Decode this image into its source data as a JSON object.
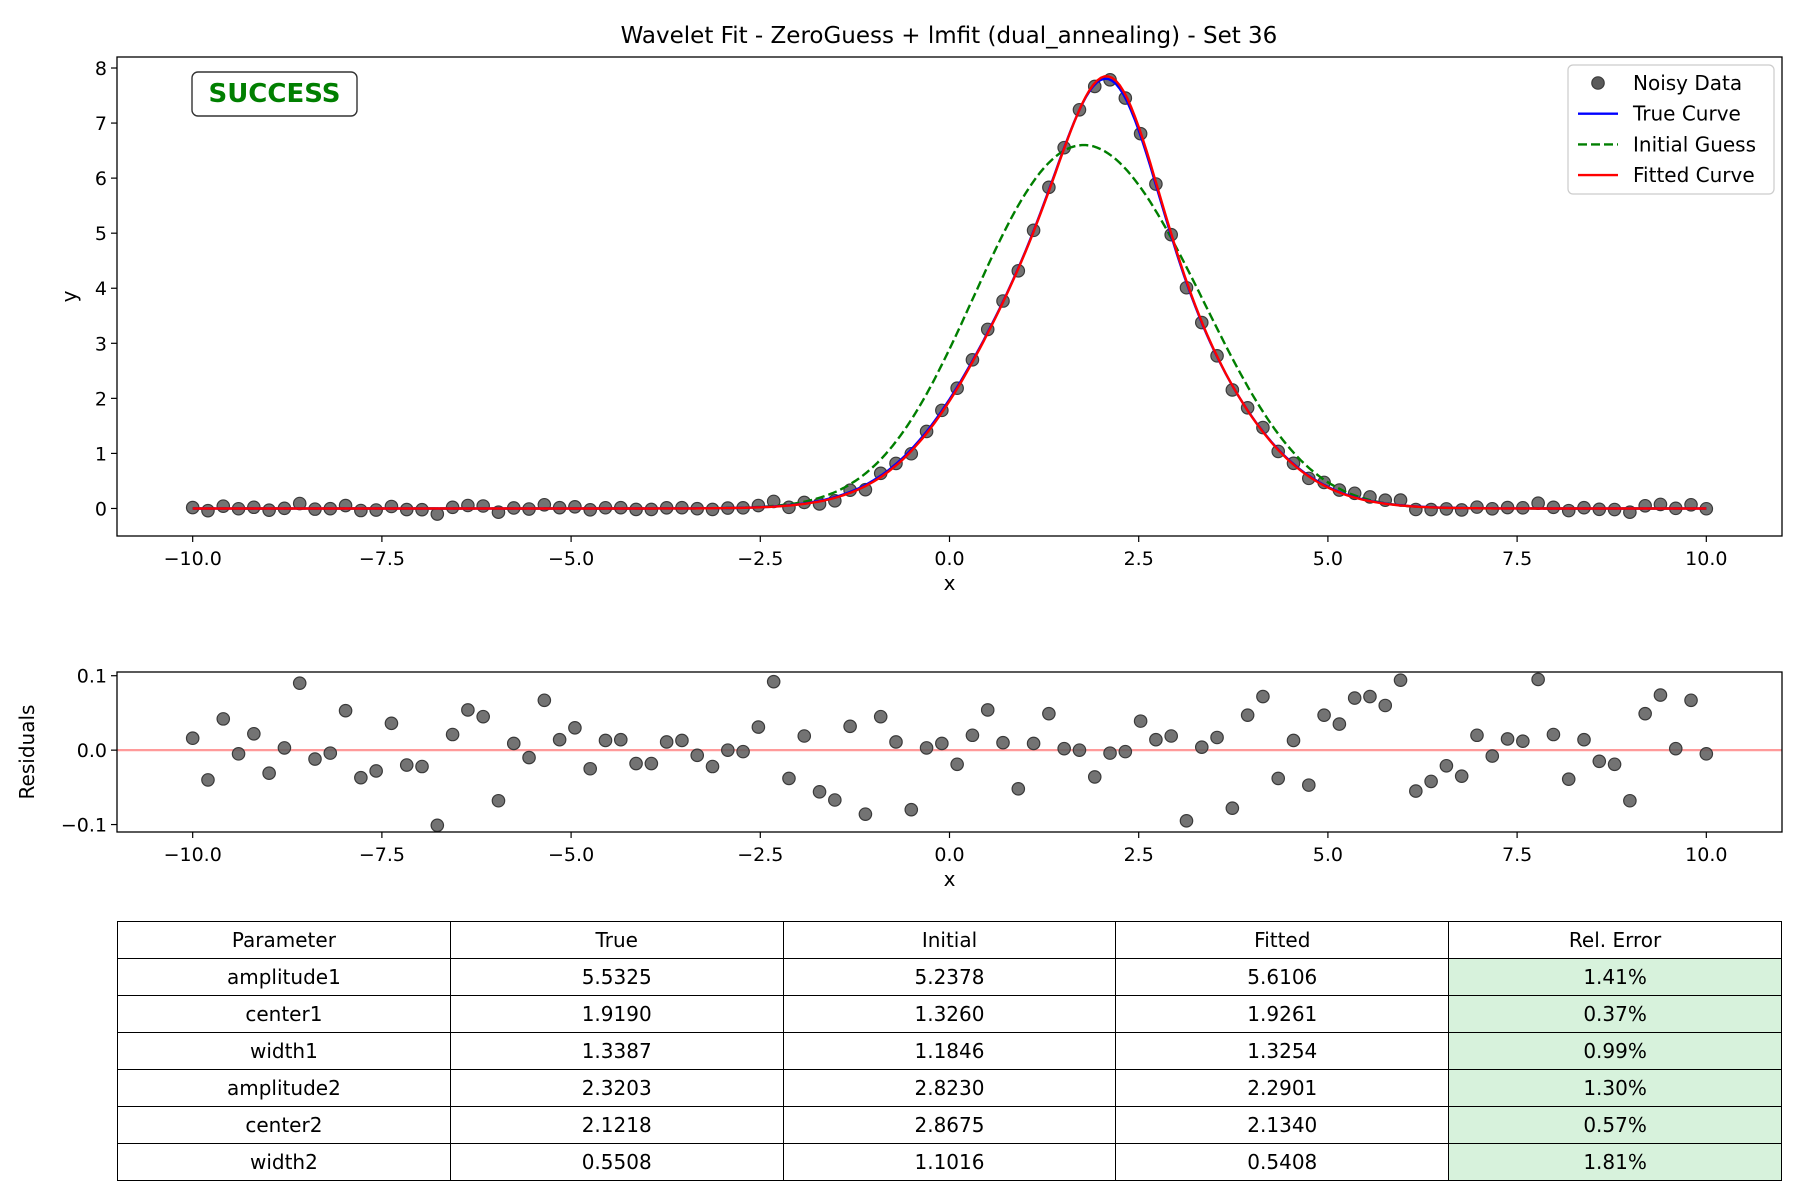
{
  "title": "Wavelet Fit - ZeroGuess + lmfit (dual_annealing) - Set 36",
  "status": {
    "text": "SUCCESS",
    "color": "#007f00"
  },
  "colors": {
    "data": "#5a5a5a",
    "true": "#0000ff",
    "initial": "#007f00",
    "fitted": "#ff0000",
    "zero_line": "#ff9a9a",
    "success_cell": "#d7f2dc"
  },
  "chart_data": [
    {
      "type": "line",
      "xlabel": "x",
      "ylabel": "y",
      "xlim": [
        -11,
        11
      ],
      "ylim": [
        -0.5,
        8.2
      ],
      "xticks": [
        -10,
        -7.5,
        -5,
        -2.5,
        0,
        2.5,
        5,
        7.5,
        10
      ],
      "xtick_labels": [
        "−10.0",
        "−7.5",
        "−5.0",
        "−2.5",
        "0.0",
        "2.5",
        "5.0",
        "7.5",
        "10.0"
      ],
      "yticks": [
        0,
        1,
        2,
        3,
        4,
        5,
        6,
        7,
        8
      ],
      "ytick_labels": [
        "0",
        "1",
        "2",
        "3",
        "4",
        "5",
        "6",
        "7",
        "8"
      ],
      "grid": false,
      "legend": "top-right",
      "x_range": [
        -10,
        10
      ],
      "n_points": 100,
      "series": [
        {
          "name": "Noisy Data",
          "style": "points",
          "color": "#5a5a5a"
        },
        {
          "name": "True Curve",
          "style": "solid",
          "color": "#0000ff",
          "params": {
            "amplitude1": 5.5325,
            "center1": 1.919,
            "width1": 1.3387,
            "amplitude2": 2.3203,
            "center2": 2.1218,
            "width2": 0.5508
          }
        },
        {
          "name": "Initial Guess",
          "style": "dashed",
          "color": "#007f00",
          "params": {
            "amplitude1": 5.2378,
            "center1": 1.326,
            "width1": 1.1846,
            "amplitude2": 2.823,
            "center2": 2.8675,
            "width2": 1.1016
          }
        },
        {
          "name": "Fitted Curve",
          "style": "solid",
          "color": "#ff0000",
          "params": {
            "amplitude1": 5.6106,
            "center1": 1.9261,
            "width1": 1.3254,
            "amplitude2": 2.2901,
            "center2": 2.134,
            "width2": 0.5408
          }
        }
      ]
    },
    {
      "type": "scatter",
      "xlabel": "x",
      "ylabel": "Residuals",
      "xlim": [
        -11,
        11
      ],
      "ylim": [
        -0.11,
        0.105
      ],
      "xticks": [
        -10,
        -7.5,
        -5,
        -2.5,
        0,
        2.5,
        5,
        7.5,
        10
      ],
      "xtick_labels": [
        "−10.0",
        "−7.5",
        "−5.0",
        "−2.5",
        "0.0",
        "2.5",
        "5.0",
        "7.5",
        "10.0"
      ],
      "yticks": [
        -0.1,
        0,
        0.1
      ],
      "ytick_labels": [
        "−0.1",
        "0.0",
        "0.1"
      ],
      "grid": false,
      "reference_line": 0,
      "residuals": [
        0.016,
        -0.04,
        0.042,
        -0.005,
        0.022,
        -0.031,
        0.003,
        0.09,
        -0.012,
        -0.004,
        0.053,
        -0.037,
        -0.028,
        0.036,
        -0.02,
        -0.022,
        -0.101,
        0.021,
        0.054,
        0.045,
        -0.068,
        0.009,
        -0.01,
        0.067,
        0.014,
        0.03,
        -0.025,
        0.013,
        0.014,
        -0.018,
        -0.018,
        0.011,
        0.013,
        -0.007,
        -0.022,
        0.0,
        -0.002,
        0.031,
        0.092,
        -0.038,
        0.019,
        -0.056,
        -0.067,
        0.032,
        -0.086,
        0.045,
        0.011,
        -0.08,
        0.003,
        0.009,
        -0.019,
        0.02,
        0.054,
        0.01,
        -0.052,
        0.009,
        0.049,
        0.002,
        0.0,
        -0.036,
        -0.004,
        -0.002,
        0.039,
        0.014,
        0.019,
        -0.095,
        0.004,
        0.017,
        -0.078,
        0.047,
        0.072,
        -0.038,
        0.013,
        -0.047,
        0.047,
        0.035,
        0.07,
        0.072,
        0.06,
        0.094,
        -0.055,
        -0.042,
        -0.021,
        -0.035,
        0.02,
        -0.008,
        0.015,
        0.012,
        0.095,
        0.021,
        -0.039,
        0.014,
        -0.015,
        -0.019,
        -0.068,
        0.049,
        0.074,
        0.002,
        0.067,
        -0.005
      ]
    },
    {
      "type": "table",
      "columns": [
        "Parameter",
        "True",
        "Initial",
        "Fitted",
        "Rel. Error"
      ],
      "rows": [
        [
          "amplitude1",
          "5.5325",
          "5.2378",
          "5.6106",
          "1.41%"
        ],
        [
          "center1",
          "1.9190",
          "1.3260",
          "1.9261",
          "0.37%"
        ],
        [
          "width1",
          "1.3387",
          "1.1846",
          "1.3254",
          "0.99%"
        ],
        [
          "amplitude2",
          "2.3203",
          "2.8230",
          "2.2901",
          "1.30%"
        ],
        [
          "center2",
          "2.1218",
          "2.8675",
          "2.1340",
          "0.57%"
        ],
        [
          "width2",
          "0.5508",
          "1.1016",
          "0.5408",
          "1.81%"
        ]
      ]
    }
  ]
}
